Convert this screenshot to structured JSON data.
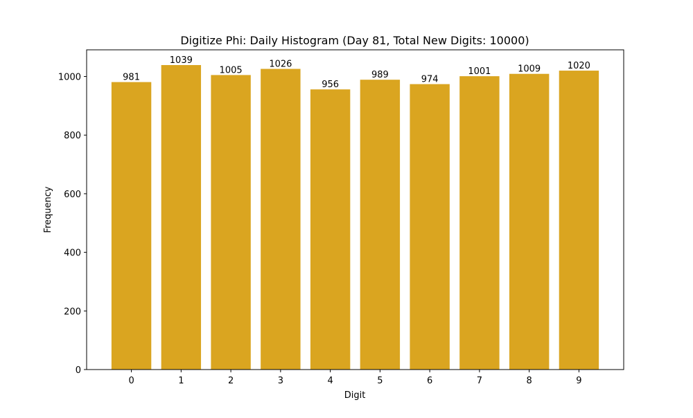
{
  "chart_data": {
    "type": "bar",
    "title": "Digitize Phi: Daily Histogram (Day 81, Total New Digits: 10000)",
    "xlabel": "Digit",
    "ylabel": "Frequency",
    "categories": [
      "0",
      "1",
      "2",
      "3",
      "4",
      "5",
      "6",
      "7",
      "8",
      "9"
    ],
    "values": [
      981,
      1039,
      1005,
      1026,
      956,
      989,
      974,
      1001,
      1009,
      1020
    ],
    "data_labels": [
      "981",
      "1039",
      "1005",
      "1026",
      "956",
      "989",
      "974",
      "1001",
      "1009",
      "1020"
    ],
    "yticks": [
      0,
      200,
      400,
      600,
      800,
      1000
    ],
    "ytick_labels": [
      "0",
      "200",
      "400",
      "600",
      "800",
      "1000"
    ],
    "ylim": [
      0,
      1091
    ],
    "xlim": [
      -0.9,
      9.9
    ],
    "grid": false,
    "legend": null,
    "bar_color": "#DAA520"
  }
}
